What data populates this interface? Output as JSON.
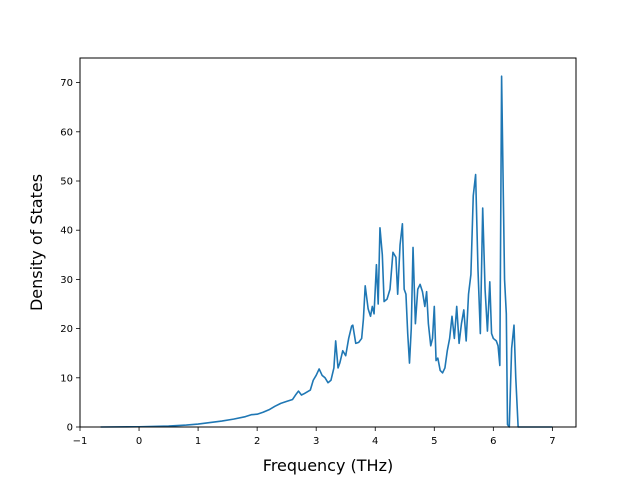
{
  "chart_data": {
    "type": "line",
    "title": "",
    "xlabel": "Frequency (THz)",
    "ylabel": "Density of States",
    "xlim": [
      -1,
      7.4
    ],
    "ylim": [
      0,
      75
    ],
    "xticks": [
      -1,
      0,
      1,
      2,
      3,
      4,
      5,
      6,
      7
    ],
    "yticks": [
      0,
      10,
      20,
      30,
      40,
      50,
      60,
      70
    ],
    "grid": false,
    "legend": "none",
    "series": [
      {
        "color": "#1f77b4",
        "points": [
          [
            -0.65,
            0
          ],
          [
            0,
            0.05
          ],
          [
            0.5,
            0.2
          ],
          [
            0.8,
            0.4
          ],
          [
            1.0,
            0.6
          ],
          [
            1.2,
            0.9
          ],
          [
            1.4,
            1.2
          ],
          [
            1.6,
            1.6
          ],
          [
            1.8,
            2.1
          ],
          [
            1.9,
            2.5
          ],
          [
            2.0,
            2.6
          ],
          [
            2.1,
            3.0
          ],
          [
            2.2,
            3.5
          ],
          [
            2.3,
            4.2
          ],
          [
            2.4,
            4.8
          ],
          [
            2.5,
            5.2
          ],
          [
            2.6,
            5.6
          ],
          [
            2.65,
            6.5
          ],
          [
            2.7,
            7.3
          ],
          [
            2.75,
            6.5
          ],
          [
            2.8,
            6.8
          ],
          [
            2.9,
            7.5
          ],
          [
            2.95,
            9.5
          ],
          [
            3.0,
            10.5
          ],
          [
            3.05,
            11.8
          ],
          [
            3.1,
            10.5
          ],
          [
            3.15,
            10.0
          ],
          [
            3.2,
            9.0
          ],
          [
            3.25,
            9.5
          ],
          [
            3.3,
            12.0
          ],
          [
            3.33,
            17.5
          ],
          [
            3.37,
            12.0
          ],
          [
            3.4,
            13.0
          ],
          [
            3.45,
            15.5
          ],
          [
            3.5,
            14.5
          ],
          [
            3.55,
            18.0
          ],
          [
            3.6,
            20.5
          ],
          [
            3.62,
            20.7
          ],
          [
            3.67,
            17.0
          ],
          [
            3.72,
            17.2
          ],
          [
            3.77,
            18.0
          ],
          [
            3.8,
            22.0
          ],
          [
            3.83,
            28.7
          ],
          [
            3.88,
            24.0
          ],
          [
            3.92,
            22.5
          ],
          [
            3.95,
            24.5
          ],
          [
            3.98,
            23.0
          ],
          [
            4.02,
            33.0
          ],
          [
            4.05,
            25.0
          ],
          [
            4.08,
            40.5
          ],
          [
            4.12,
            35.0
          ],
          [
            4.15,
            25.5
          ],
          [
            4.2,
            26.0
          ],
          [
            4.25,
            28.0
          ],
          [
            4.3,
            35.5
          ],
          [
            4.35,
            34.5
          ],
          [
            4.38,
            27.0
          ],
          [
            4.42,
            37.0
          ],
          [
            4.46,
            41.3
          ],
          [
            4.49,
            28.0
          ],
          [
            4.52,
            27.0
          ],
          [
            4.55,
            19.0
          ],
          [
            4.58,
            13.0
          ],
          [
            4.61,
            20.0
          ],
          [
            4.64,
            36.5
          ],
          [
            4.68,
            21.0
          ],
          [
            4.72,
            28.0
          ],
          [
            4.76,
            29.0
          ],
          [
            4.8,
            27.5
          ],
          [
            4.84,
            24.5
          ],
          [
            4.87,
            27.5
          ],
          [
            4.9,
            21.0
          ],
          [
            4.94,
            16.5
          ],
          [
            4.97,
            18.0
          ],
          [
            5.0,
            24.5
          ],
          [
            5.03,
            13.5
          ],
          [
            5.06,
            14.0
          ],
          [
            5.1,
            11.5
          ],
          [
            5.14,
            11.0
          ],
          [
            5.18,
            12.0
          ],
          [
            5.22,
            15.5
          ],
          [
            5.26,
            18.0
          ],
          [
            5.3,
            22.5
          ],
          [
            5.34,
            18.0
          ],
          [
            5.38,
            24.5
          ],
          [
            5.42,
            17.0
          ],
          [
            5.46,
            21.0
          ],
          [
            5.5,
            23.8
          ],
          [
            5.54,
            17.5
          ],
          [
            5.58,
            27.0
          ],
          [
            5.62,
            31.0
          ],
          [
            5.66,
            47.0
          ],
          [
            5.7,
            51.3
          ],
          [
            5.74,
            32.0
          ],
          [
            5.78,
            19.0
          ],
          [
            5.82,
            44.5
          ],
          [
            5.86,
            28.0
          ],
          [
            5.9,
            19.5
          ],
          [
            5.94,
            29.5
          ],
          [
            5.97,
            19.0
          ],
          [
            6.0,
            18.0
          ],
          [
            6.05,
            17.5
          ],
          [
            6.08,
            16.5
          ],
          [
            6.11,
            12.5
          ],
          [
            6.14,
            71.3
          ],
          [
            6.19,
            30.0
          ],
          [
            6.22,
            23.0
          ],
          [
            6.24,
            0.5
          ],
          [
            6.27,
            0
          ],
          [
            6.31,
            16.0
          ],
          [
            6.35,
            20.7
          ],
          [
            6.38,
            10.0
          ],
          [
            6.42,
            0
          ],
          [
            6.5,
            0
          ],
          [
            7.0,
            0
          ]
        ]
      }
    ]
  }
}
